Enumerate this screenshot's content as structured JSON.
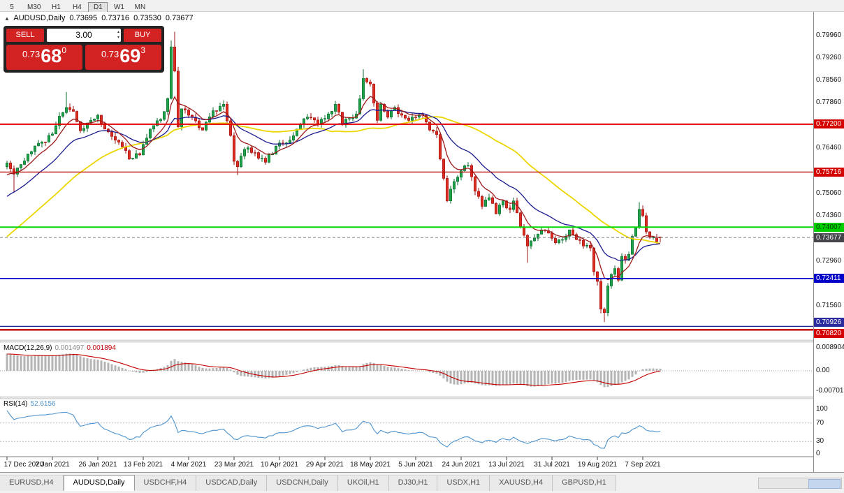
{
  "toolbar": {
    "timeframes": [
      {
        "label": "5",
        "active": false
      },
      {
        "label": "M30",
        "active": false
      },
      {
        "label": "H1",
        "active": false
      },
      {
        "label": "H4",
        "active": false
      },
      {
        "label": "D1",
        "active": true
      },
      {
        "label": "W1",
        "active": false
      },
      {
        "label": "MN",
        "active": false
      }
    ]
  },
  "chart": {
    "symbol": "AUDUSD,Daily",
    "ohlc": {
      "open": "0.73695",
      "high": "0.73716",
      "low": "0.73530",
      "close": "0.73677"
    },
    "trade_panel": {
      "sell_label": "SELL",
      "buy_label": "BUY",
      "volume": "3.00",
      "sell_price_small": "0.73",
      "sell_price_big": "68",
      "sell_price_sup": "0",
      "buy_price_small": "0.73",
      "buy_price_big": "69",
      "buy_price_sup": "3"
    },
    "colors": {
      "bull": "#1fa14a",
      "bear": "#dd2c22",
      "bull_border": "#0d6e31",
      "bear_border": "#9e1410"
    },
    "price_axis": {
      "min": 0.705,
      "max": 0.8045,
      "labels": [
        "0.79960",
        "0.79260",
        "0.78560",
        "0.77860",
        "0.76460",
        "0.75060",
        "0.74360",
        "0.72960",
        "0.71560"
      ]
    },
    "hlines": [
      {
        "price": 0.772,
        "badge": "0.77200",
        "color": "#e00000",
        "width": 2,
        "badge_bg": "#d40000",
        "badge_fg": "#ffffff"
      },
      {
        "price": 0.75716,
        "badge": "0.75716",
        "color": "#c00000",
        "width": 1.2,
        "badge_bg": "#d40000",
        "badge_fg": "#ffffff"
      },
      {
        "price": 0.74007,
        "badge": "0.74007",
        "color": "#00d800",
        "width": 2,
        "badge_bg": "#00d000",
        "badge_fg": "#013a01"
      },
      {
        "price": 0.73677,
        "badge": "0.73677",
        "color": "#8a8a8a",
        "width": 1,
        "style": "dash",
        "badge_bg": "#43454a",
        "badge_fg": "#ffffff"
      },
      {
        "price": 0.72411,
        "badge": "0.72411",
        "color": "#0000c8",
        "width": 1.6,
        "badge_bg": "#0000c8",
        "badge_fg": "#ffffff"
      },
      {
        "price": 0.70926,
        "badge": "0.70926",
        "color": "#000080",
        "width": 1.2,
        "badge_bg": "#2a2a9e",
        "badge_fg": "#ffffff",
        "badge_dy": -12
      },
      {
        "price": 0.7082,
        "badge": "0.70820",
        "color": "#c00000",
        "width": 2.5,
        "badge_bg": "#d40000",
        "badge_fg": "#ffffff",
        "badge_dy": -1
      }
    ],
    "prehistory": {
      "bars": 50,
      "start": 0.708,
      "end": 0.759
    },
    "ma_lines": [
      {
        "name": "ma-slow-yellow",
        "type": "sma",
        "period": 45,
        "color": "#ecd600",
        "width": 1.8
      },
      {
        "name": "ma-mid-blue",
        "type": "ema",
        "period": 21,
        "color": "#1c1c8f",
        "width": 1.3
      },
      {
        "name": "ma-fast-red",
        "type": "ema",
        "period": 8,
        "color": "#9b1b1b",
        "width": 1.3
      }
    ],
    "candles": {
      "count": 188,
      "keyframes": [
        [
          0,
          0.76
        ],
        [
          2,
          0.7565
        ],
        [
          4,
          0.7595
        ],
        [
          7,
          0.7635
        ],
        [
          10,
          0.7665
        ],
        [
          13,
          0.769
        ],
        [
          15,
          0.7745
        ],
        [
          17,
          0.7772
        ],
        [
          19,
          0.776
        ],
        [
          21,
          0.77
        ],
        [
          24,
          0.7732
        ],
        [
          26,
          0.7748
        ],
        [
          28,
          0.7705
        ],
        [
          30,
          0.7682
        ],
        [
          33,
          0.765
        ],
        [
          35,
          0.7612
        ],
        [
          38,
          0.7625
        ],
        [
          41,
          0.7705
        ],
        [
          44,
          0.7735
        ],
        [
          46,
          0.78
        ],
        [
          47,
          0.796
        ],
        [
          48,
          0.7885
        ],
        [
          49,
          0.7712
        ],
        [
          50,
          0.7768
        ],
        [
          53,
          0.7742
        ],
        [
          56,
          0.7702
        ],
        [
          59,
          0.7762
        ],
        [
          62,
          0.7782
        ],
        [
          64,
          0.7685
        ],
        [
          65,
          0.7605
        ],
        [
          66,
          0.7588
        ],
        [
          68,
          0.7642
        ],
        [
          71,
          0.7632
        ],
        [
          74,
          0.7602
        ],
        [
          77,
          0.7652
        ],
        [
          80,
          0.7662
        ],
        [
          83,
          0.7705
        ],
        [
          86,
          0.7742
        ],
        [
          89,
          0.7722
        ],
        [
          92,
          0.7752
        ],
        [
          94,
          0.7782
        ],
        [
          96,
          0.7718
        ],
        [
          98,
          0.7738
        ],
        [
          100,
          0.7752
        ],
        [
          102,
          0.7862
        ],
        [
          104,
          0.7845
        ],
        [
          106,
          0.7732
        ],
        [
          107,
          0.7782
        ],
        [
          109,
          0.7742
        ],
        [
          111,
          0.7772
        ],
        [
          113,
          0.7748
        ],
        [
          115,
          0.7732
        ],
        [
          117,
          0.7742
        ],
        [
          119,
          0.7748
        ],
        [
          121,
          0.7702
        ],
        [
          123,
          0.7688
        ],
        [
          124,
          0.7612
        ],
        [
          125,
          0.7552
        ],
        [
          126,
          0.7482
        ],
        [
          128,
          0.7542
        ],
        [
          130,
          0.7576
        ],
        [
          132,
          0.7592
        ],
        [
          134,
          0.7512
        ],
        [
          136,
          0.7465
        ],
        [
          138,
          0.7492
        ],
        [
          140,
          0.7442
        ],
        [
          142,
          0.7482
        ],
        [
          144,
          0.7455
        ],
        [
          145,
          0.7482
        ],
        [
          147,
          0.7402
        ],
        [
          149,
          0.7342
        ],
        [
          151,
          0.7366
        ],
        [
          153,
          0.7392
        ],
        [
          155,
          0.7382
        ],
        [
          157,
          0.7352
        ],
        [
          159,
          0.7362
        ],
        [
          161,
          0.7392
        ],
        [
          163,
          0.7362
        ],
        [
          165,
          0.7342
        ],
        [
          167,
          0.7336
        ],
        [
          168,
          0.7262
        ],
        [
          169,
          0.7232
        ],
        [
          170,
          0.7146
        ],
        [
          171,
          0.7135
        ],
        [
          172,
          0.7218
        ],
        [
          173,
          0.7254
        ],
        [
          174,
          0.7272
        ],
        [
          175,
          0.7236
        ],
        [
          176,
          0.731
        ],
        [
          177,
          0.7298
        ],
        [
          178,
          0.7316
        ],
        [
          179,
          0.7372
        ],
        [
          180,
          0.74
        ],
        [
          181,
          0.7456
        ],
        [
          182,
          0.7436
        ],
        [
          183,
          0.7386
        ],
        [
          184,
          0.7369
        ],
        [
          185,
          0.7369
        ],
        [
          186,
          0.7356
        ],
        [
          187,
          0.73677
        ]
      ],
      "wick_overrides": [
        {
          "i": 2,
          "l": 0.7508
        },
        {
          "i": 17,
          "h": 0.782
        },
        {
          "i": 47,
          "h": 0.798
        },
        {
          "i": 48,
          "h": 0.8007
        },
        {
          "i": 66,
          "l": 0.7562
        },
        {
          "i": 102,
          "h": 0.7891
        },
        {
          "i": 126,
          "l": 0.7478
        },
        {
          "i": 149,
          "l": 0.729
        },
        {
          "i": 171,
          "l": 0.7106
        },
        {
          "i": 181,
          "h": 0.7478
        },
        {
          "i": 187,
          "o": 0.73695,
          "h": 0.73716,
          "l": 0.7353,
          "c": 0.73677
        }
      ]
    }
  },
  "indicators": {
    "macd": {
      "label": "MACD(12,26,9)",
      "value_main": "0.001497",
      "value_signal": "0.001894",
      "axis_labels": [
        "0.008904",
        "0.00",
        "-0.007013"
      ],
      "signal_color": "#c40000",
      "hist_color": "#b4b4b4"
    },
    "rsi": {
      "label": "RSI(14)",
      "value": "52.6156",
      "period": 14,
      "levels": [
        70,
        30
      ],
      "axis_labels": [
        "100",
        "70",
        "30",
        "0"
      ],
      "color": "#4f94cd"
    }
  },
  "date_axis": {
    "bars_per_label": 13,
    "labels": [
      "17 Dec 2020",
      "7 Jan 2021",
      "26 Jan 2021",
      "13 Feb 2021",
      "4 Mar 2021",
      "23 Mar 2021",
      "10 Apr 2021",
      "29 Apr 2021",
      "18 May 2021",
      "5 Jun 2021",
      "24 Jun 2021",
      "13 Jul 2021",
      "31 Jul 2021",
      "19 Aug 2021",
      "7 Sep 2021"
    ]
  },
  "tabs": [
    {
      "label": "EURUSD,H4",
      "active": false
    },
    {
      "label": "AUDUSD,Daily",
      "active": true
    },
    {
      "label": "USDCHF,H4",
      "active": false
    },
    {
      "label": "USDCAD,Daily",
      "active": false
    },
    {
      "label": "USDCNH,Daily",
      "active": false
    },
    {
      "label": "UKOil,H1",
      "active": false
    },
    {
      "label": "DJ30,H1",
      "active": false
    },
    {
      "label": "USDX,H1",
      "active": false
    },
    {
      "label": "XAUUSD,H4",
      "active": false
    },
    {
      "label": "GBPUSD,H1",
      "active": false
    }
  ]
}
